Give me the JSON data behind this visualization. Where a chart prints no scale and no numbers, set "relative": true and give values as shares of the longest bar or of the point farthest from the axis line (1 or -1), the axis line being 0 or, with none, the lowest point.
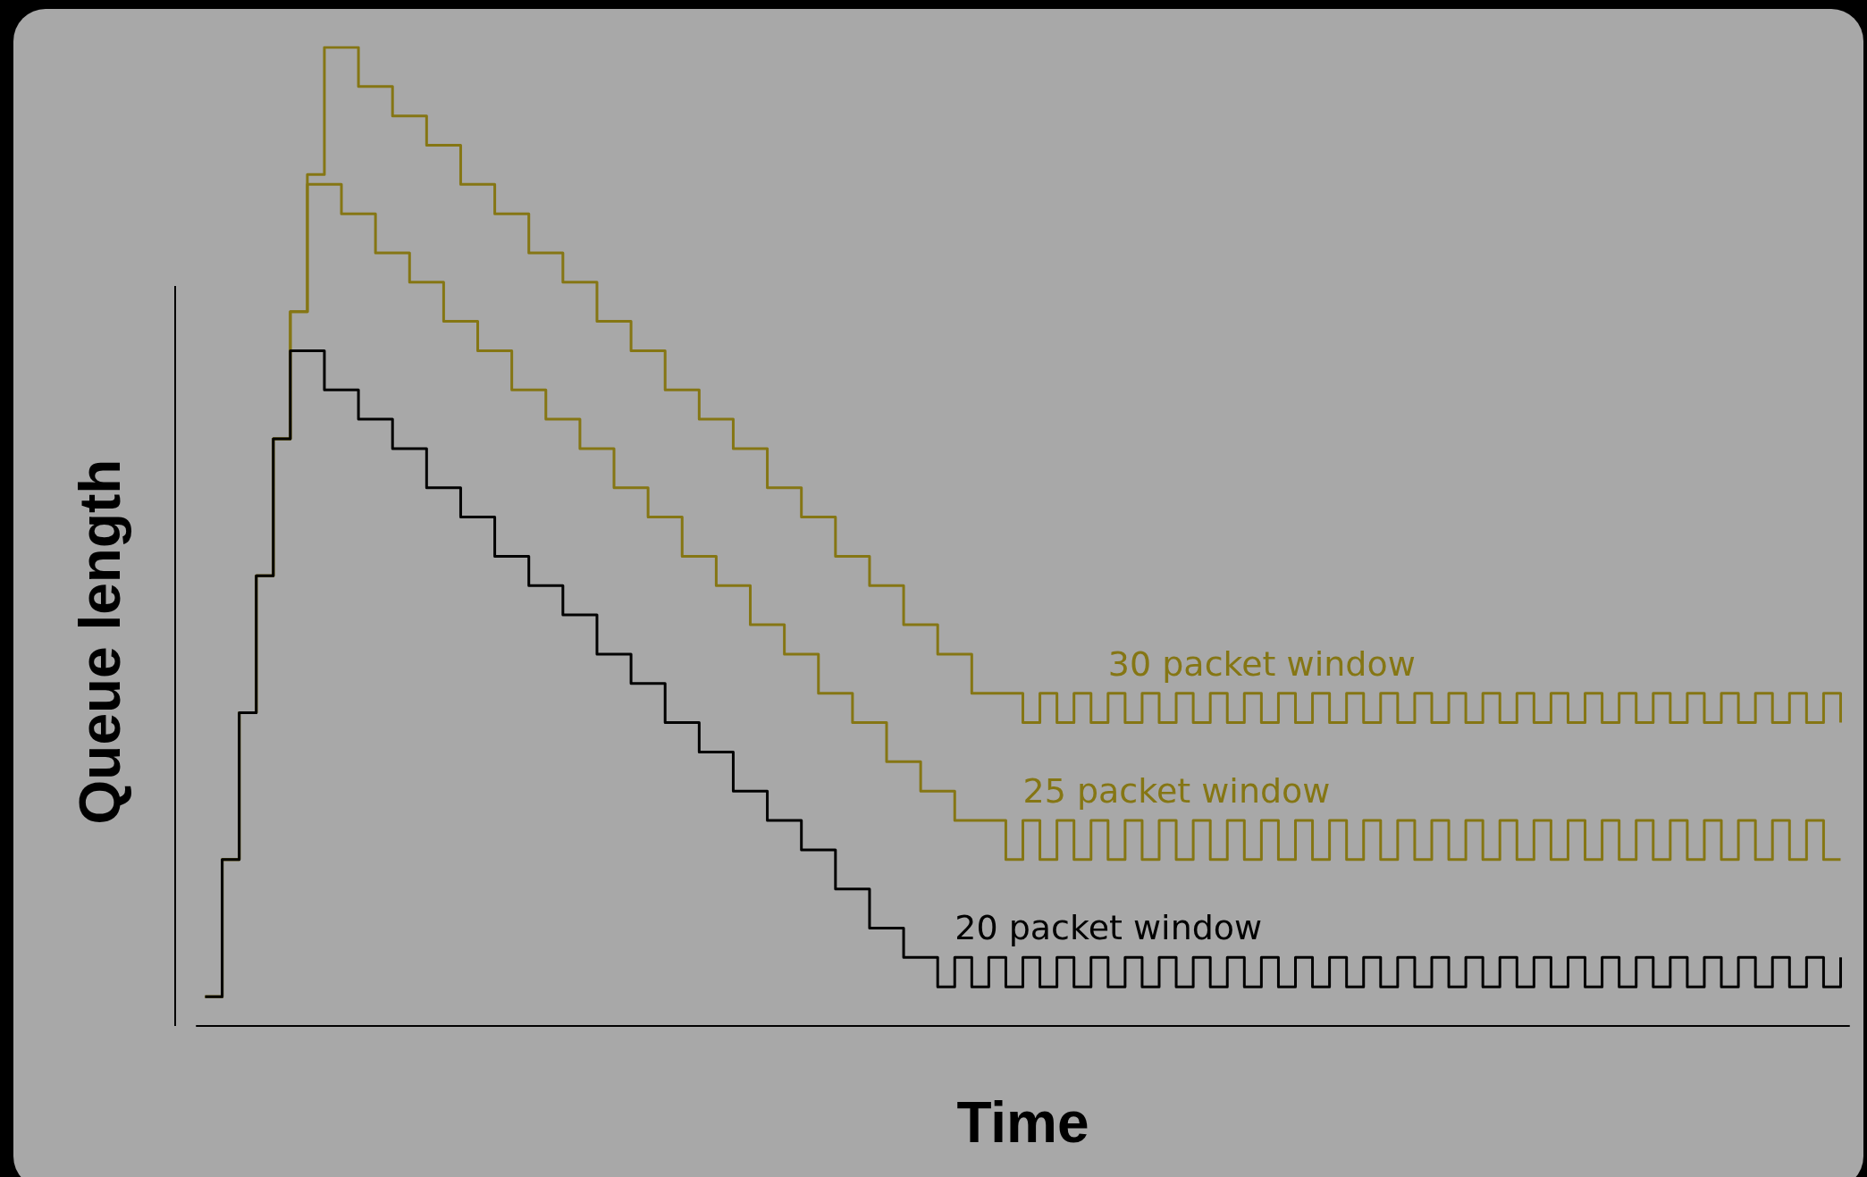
{
  "chart_data": {
    "type": "step",
    "relative": true,
    "xlabel": "Time",
    "ylabel": "Queue length",
    "legend": false,
    "categories": [
      null,
      null,
      null,
      null,
      null,
      null,
      null,
      null,
      null,
      null,
      null,
      null,
      null,
      null,
      null,
      null,
      null,
      null,
      null,
      null,
      null,
      null,
      null,
      null,
      null,
      null,
      null,
      null,
      null,
      null,
      null,
      null,
      null,
      null,
      null,
      null,
      null,
      null,
      null,
      null,
      null,
      null,
      null,
      null,
      null,
      null,
      null,
      null,
      null,
      null,
      null,
      null,
      null,
      null,
      null,
      null,
      null,
      null,
      null,
      null,
      null,
      null,
      null,
      null,
      null,
      null,
      null,
      null,
      null,
      null,
      null,
      null,
      null,
      null,
      null,
      null,
      null,
      null,
      null,
      null,
      null,
      null,
      null,
      null,
      null,
      null,
      null,
      null,
      null,
      null,
      null,
      null,
      null,
      null,
      null,
      null,
      null
    ],
    "series": [
      {
        "name": "30 packet window",
        "color": "#857614",
        "values": [
          0.03,
          0.17,
          0.32,
          0.46,
          0.6,
          0.73,
          0.87,
          1,
          1,
          0.96,
          0.96,
          0.93,
          0.93,
          0.9,
          0.9,
          0.86,
          0.86,
          0.83,
          0.83,
          0.79,
          0.79,
          0.76,
          0.76,
          0.72,
          0.72,
          0.69,
          0.69,
          0.65,
          0.65,
          0.62,
          0.62,
          0.59,
          0.59,
          0.55,
          0.55,
          0.52,
          0.52,
          0.48,
          0.48,
          0.45,
          0.45,
          0.41,
          0.41,
          0.38,
          0.38,
          0.34,
          0.34,
          0.34,
          0.31,
          0.34,
          0.31,
          0.34,
          0.31,
          0.34,
          0.31,
          0.34,
          0.31,
          0.34,
          0.31,
          0.34,
          0.31,
          0.34,
          0.31,
          0.34,
          0.31,
          0.34,
          0.31,
          0.34,
          0.31,
          0.34,
          0.31,
          0.34,
          0.31,
          0.34,
          0.31,
          0.34,
          0.31,
          0.34,
          0.31,
          0.34,
          0.31,
          0.34,
          0.31,
          0.34,
          0.31,
          0.34,
          0.31,
          0.34,
          0.31,
          0.34,
          0.31,
          0.34,
          0.31,
          0.34,
          0.31,
          0.34,
          0.31
        ]
      },
      {
        "name": "25 packet window",
        "color": "#857614",
        "values": [
          0.03,
          0.17,
          0.32,
          0.46,
          0.6,
          0.73,
          0.86,
          0.86,
          0.83,
          0.83,
          0.79,
          0.79,
          0.76,
          0.76,
          0.72,
          0.72,
          0.69,
          0.69,
          0.65,
          0.65,
          0.62,
          0.62,
          0.59,
          0.59,
          0.55,
          0.55,
          0.52,
          0.52,
          0.48,
          0.48,
          0.45,
          0.45,
          0.41,
          0.41,
          0.38,
          0.38,
          0.34,
          0.34,
          0.31,
          0.31,
          0.27,
          0.27,
          0.24,
          0.24,
          0.21,
          0.21,
          0.21,
          0.17,
          0.21,
          0.17,
          0.21,
          0.17,
          0.21,
          0.17,
          0.21,
          0.17,
          0.21,
          0.17,
          0.21,
          0.17,
          0.21,
          0.17,
          0.21,
          0.17,
          0.21,
          0.17,
          0.21,
          0.17,
          0.21,
          0.17,
          0.21,
          0.17,
          0.21,
          0.17,
          0.21,
          0.17,
          0.21,
          0.17,
          0.21,
          0.17,
          0.21,
          0.17,
          0.21,
          0.17,
          0.21,
          0.17,
          0.21,
          0.17,
          0.21,
          0.17,
          0.21,
          0.17,
          0.21,
          0.17,
          0.21,
          0.17,
          0.17
        ]
      },
      {
        "name": "20 packet window",
        "color": "#000000",
        "values": [
          0.03,
          0.17,
          0.32,
          0.46,
          0.6,
          0.69,
          0.69,
          0.65,
          0.65,
          0.62,
          0.62,
          0.59,
          0.59,
          0.55,
          0.55,
          0.52,
          0.52,
          0.48,
          0.48,
          0.45,
          0.45,
          0.42,
          0.42,
          0.38,
          0.38,
          0.35,
          0.35,
          0.31,
          0.31,
          0.28,
          0.28,
          0.24,
          0.24,
          0.21,
          0.21,
          0.18,
          0.18,
          0.14,
          0.14,
          0.1,
          0.1,
          0.07,
          0.07,
          0.04,
          0.07,
          0.04,
          0.07,
          0.04,
          0.07,
          0.04,
          0.07,
          0.04,
          0.07,
          0.04,
          0.07,
          0.04,
          0.07,
          0.04,
          0.07,
          0.04,
          0.07,
          0.04,
          0.07,
          0.04,
          0.07,
          0.04,
          0.07,
          0.04,
          0.07,
          0.04,
          0.07,
          0.04,
          0.07,
          0.04,
          0.07,
          0.04,
          0.07,
          0.04,
          0.07,
          0.04,
          0.07,
          0.04,
          0.07,
          0.04,
          0.07,
          0.04,
          0.07,
          0.04,
          0.07,
          0.04,
          0.07,
          0.04,
          0.07,
          0.04,
          0.07,
          0.04,
          0.07
        ]
      }
    ]
  }
}
